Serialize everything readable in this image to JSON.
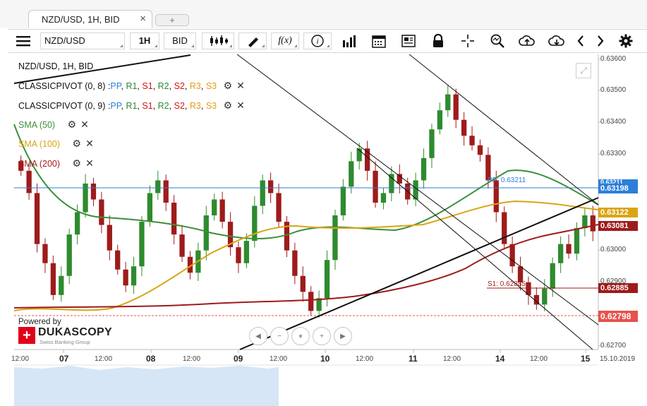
{
  "tab": {
    "title": "NZD/USD, 1H, BID",
    "close": "×",
    "new_tab": "+"
  },
  "toolbar": {
    "instrument": "NZD/USD",
    "period": "1H",
    "side": "BID",
    "fx_label": "f(x)"
  },
  "chart_data": {
    "type": "candlestick",
    "title": "NZD/USD, 1H, BID",
    "legend": {
      "pivot1": "CLASSICPIVOT (0, 8)",
      "pivot2": "CLASSICPIVOT (0, 9)",
      "pivot_levels": [
        ":",
        "PP",
        ",",
        "R1",
        ",",
        "S1",
        ",",
        "R2",
        ",",
        "S2",
        ",",
        "R3",
        ",",
        "S3"
      ],
      "sma50": "SMA (50)",
      "sma100": "SMA (100)",
      "sma200": "SMA (200)"
    },
    "y_ticks": [
      "0.63600",
      "0.63500",
      "0.63400",
      "0.63300",
      "0.63000",
      "0.62900",
      "0.62700"
    ],
    "x_ticks": [
      "12:00",
      "07",
      "12:00",
      "08",
      "12:00",
      "09",
      "12:00",
      "10",
      "12:00",
      "11",
      "12:00",
      "14",
      "12:00",
      "15",
      "15.10.2019"
    ],
    "price_labels": [
      {
        "value": "0.63211",
        "color": "#2d7ed8",
        "partial": true
      },
      {
        "value": "0.63198",
        "color": "#2d7ed8"
      },
      {
        "value": "0.63122",
        "color": "#d9a514"
      },
      {
        "value": "0.63081",
        "color": "#9e1b1b"
      },
      {
        "value": "0.62885",
        "color": "#9e1b1b"
      },
      {
        "value": "0.62798",
        "color": "#e5534b"
      }
    ],
    "pivot_annotations": {
      "pp": "PP: 0.63211",
      "s1": "S1: 0.62885"
    },
    "ohlc_sample": [
      0.6325,
      0.6318,
      0.6302,
      0.6296,
      0.6286,
      0.6292,
      0.6305,
      0.6312,
      0.6321,
      0.6316,
      0.6308,
      0.63,
      0.6294,
      0.6289,
      0.6295,
      0.6309,
      0.6318,
      0.6322,
      0.6315,
      0.6305,
      0.6298,
      0.6293,
      0.63,
      0.6311,
      0.6316,
      0.6309,
      0.6301,
      0.6296,
      0.6303,
      0.6314,
      0.6322,
      0.6318,
      0.6309,
      0.63,
      0.6292,
      0.6287,
      0.6281,
      0.6285,
      0.6297,
      0.6311,
      0.632,
      0.6328,
      0.6332,
      0.6325,
      0.6315,
      0.6318,
      0.6324,
      0.6321,
      0.6316,
      0.6322,
      0.6329,
      0.6338,
      0.6344,
      0.6349,
      0.6341,
      0.6336,
      0.6333,
      0.633,
      0.6322,
      0.6312,
      0.6302,
      0.6295,
      0.629,
      0.6286,
      0.6283,
      0.6288,
      0.6296,
      0.6302,
      0.6299,
      0.6307,
      0.6311,
      0.6306
    ]
  },
  "branding": {
    "powered": "Powered by",
    "name": "DUKASCOPY",
    "sub": "Swiss Banking Group"
  },
  "colors": {
    "up": "#2e8b2e",
    "down": "#9e1b1b",
    "sma50": "#3c8f3a",
    "sma100": "#d9a514",
    "sma200": "#9e1b1b",
    "pp": "#2d7ed8"
  }
}
